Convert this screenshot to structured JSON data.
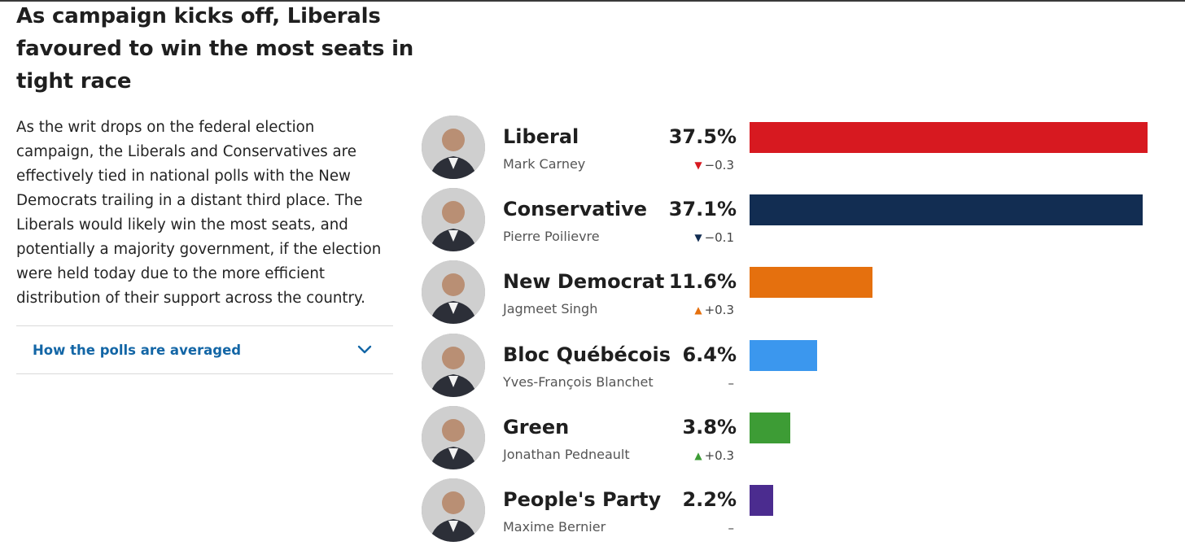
{
  "article": {
    "headline": "As campaign kicks off, Liberals favoured to win the most seats in tight race",
    "body": "As the writ drops on the federal election campaign, the Liberals and Conservatives are effectively tied in national polls with the New Democrats trailing in a distant third place. The Liberals would likely win the most seats, and potentially a majority government, if the election were held today due to the more efficient distribution of their support across the country.",
    "accordion_label": "How the polls are averaged"
  },
  "chart_data": {
    "type": "bar",
    "orientation": "horizontal",
    "xlim": [
      0,
      39
    ],
    "categories": [
      "Liberal",
      "Conservative",
      "New Democrat",
      "Bloc Québécois",
      "Green",
      "People's Party"
    ],
    "values": [
      37.5,
      37.1,
      11.6,
      6.4,
      3.8,
      2.2
    ],
    "rows": [
      {
        "party": "Liberal",
        "leader": "Mark Carney",
        "value": 37.5,
        "pct_label": "37.5%",
        "change": "−0.3",
        "direction": "down",
        "color": "#d71920",
        "arrow_color": "#d71920"
      },
      {
        "party": "Conservative",
        "leader": "Pierre Poilievre",
        "value": 37.1,
        "pct_label": "37.1%",
        "change": "−0.1",
        "direction": "down",
        "color": "#122d52",
        "arrow_color": "#122d52"
      },
      {
        "party": "New Democrat",
        "leader": "Jagmeet Singh",
        "value": 11.6,
        "pct_label": "11.6%",
        "change": "+0.3",
        "direction": "up",
        "color": "#e5700e",
        "arrow_color": "#e5700e"
      },
      {
        "party": "Bloc Québécois",
        "leader": "Yves-François Blanchet",
        "value": 6.4,
        "pct_label": "6.4%",
        "change": "–",
        "direction": "none",
        "color": "#3b97ee",
        "arrow_color": "#444444"
      },
      {
        "party": "Green",
        "leader": "Jonathan Pedneault",
        "value": 3.8,
        "pct_label": "3.8%",
        "change": "+0.3",
        "direction": "up",
        "color": "#3d9c35",
        "arrow_color": "#3d9c35"
      },
      {
        "party": "People's Party",
        "leader": "Maxime Bernier",
        "value": 2.2,
        "pct_label": "2.2%",
        "change": "–",
        "direction": "none",
        "color": "#4b2c8f",
        "arrow_color": "#444444"
      }
    ]
  },
  "icons": {
    "chevron": "chevron-down-icon",
    "avatar": "avatar-portrait"
  },
  "colors": {
    "accent_link": "#1366a6",
    "divider": "#d9d9d9"
  }
}
